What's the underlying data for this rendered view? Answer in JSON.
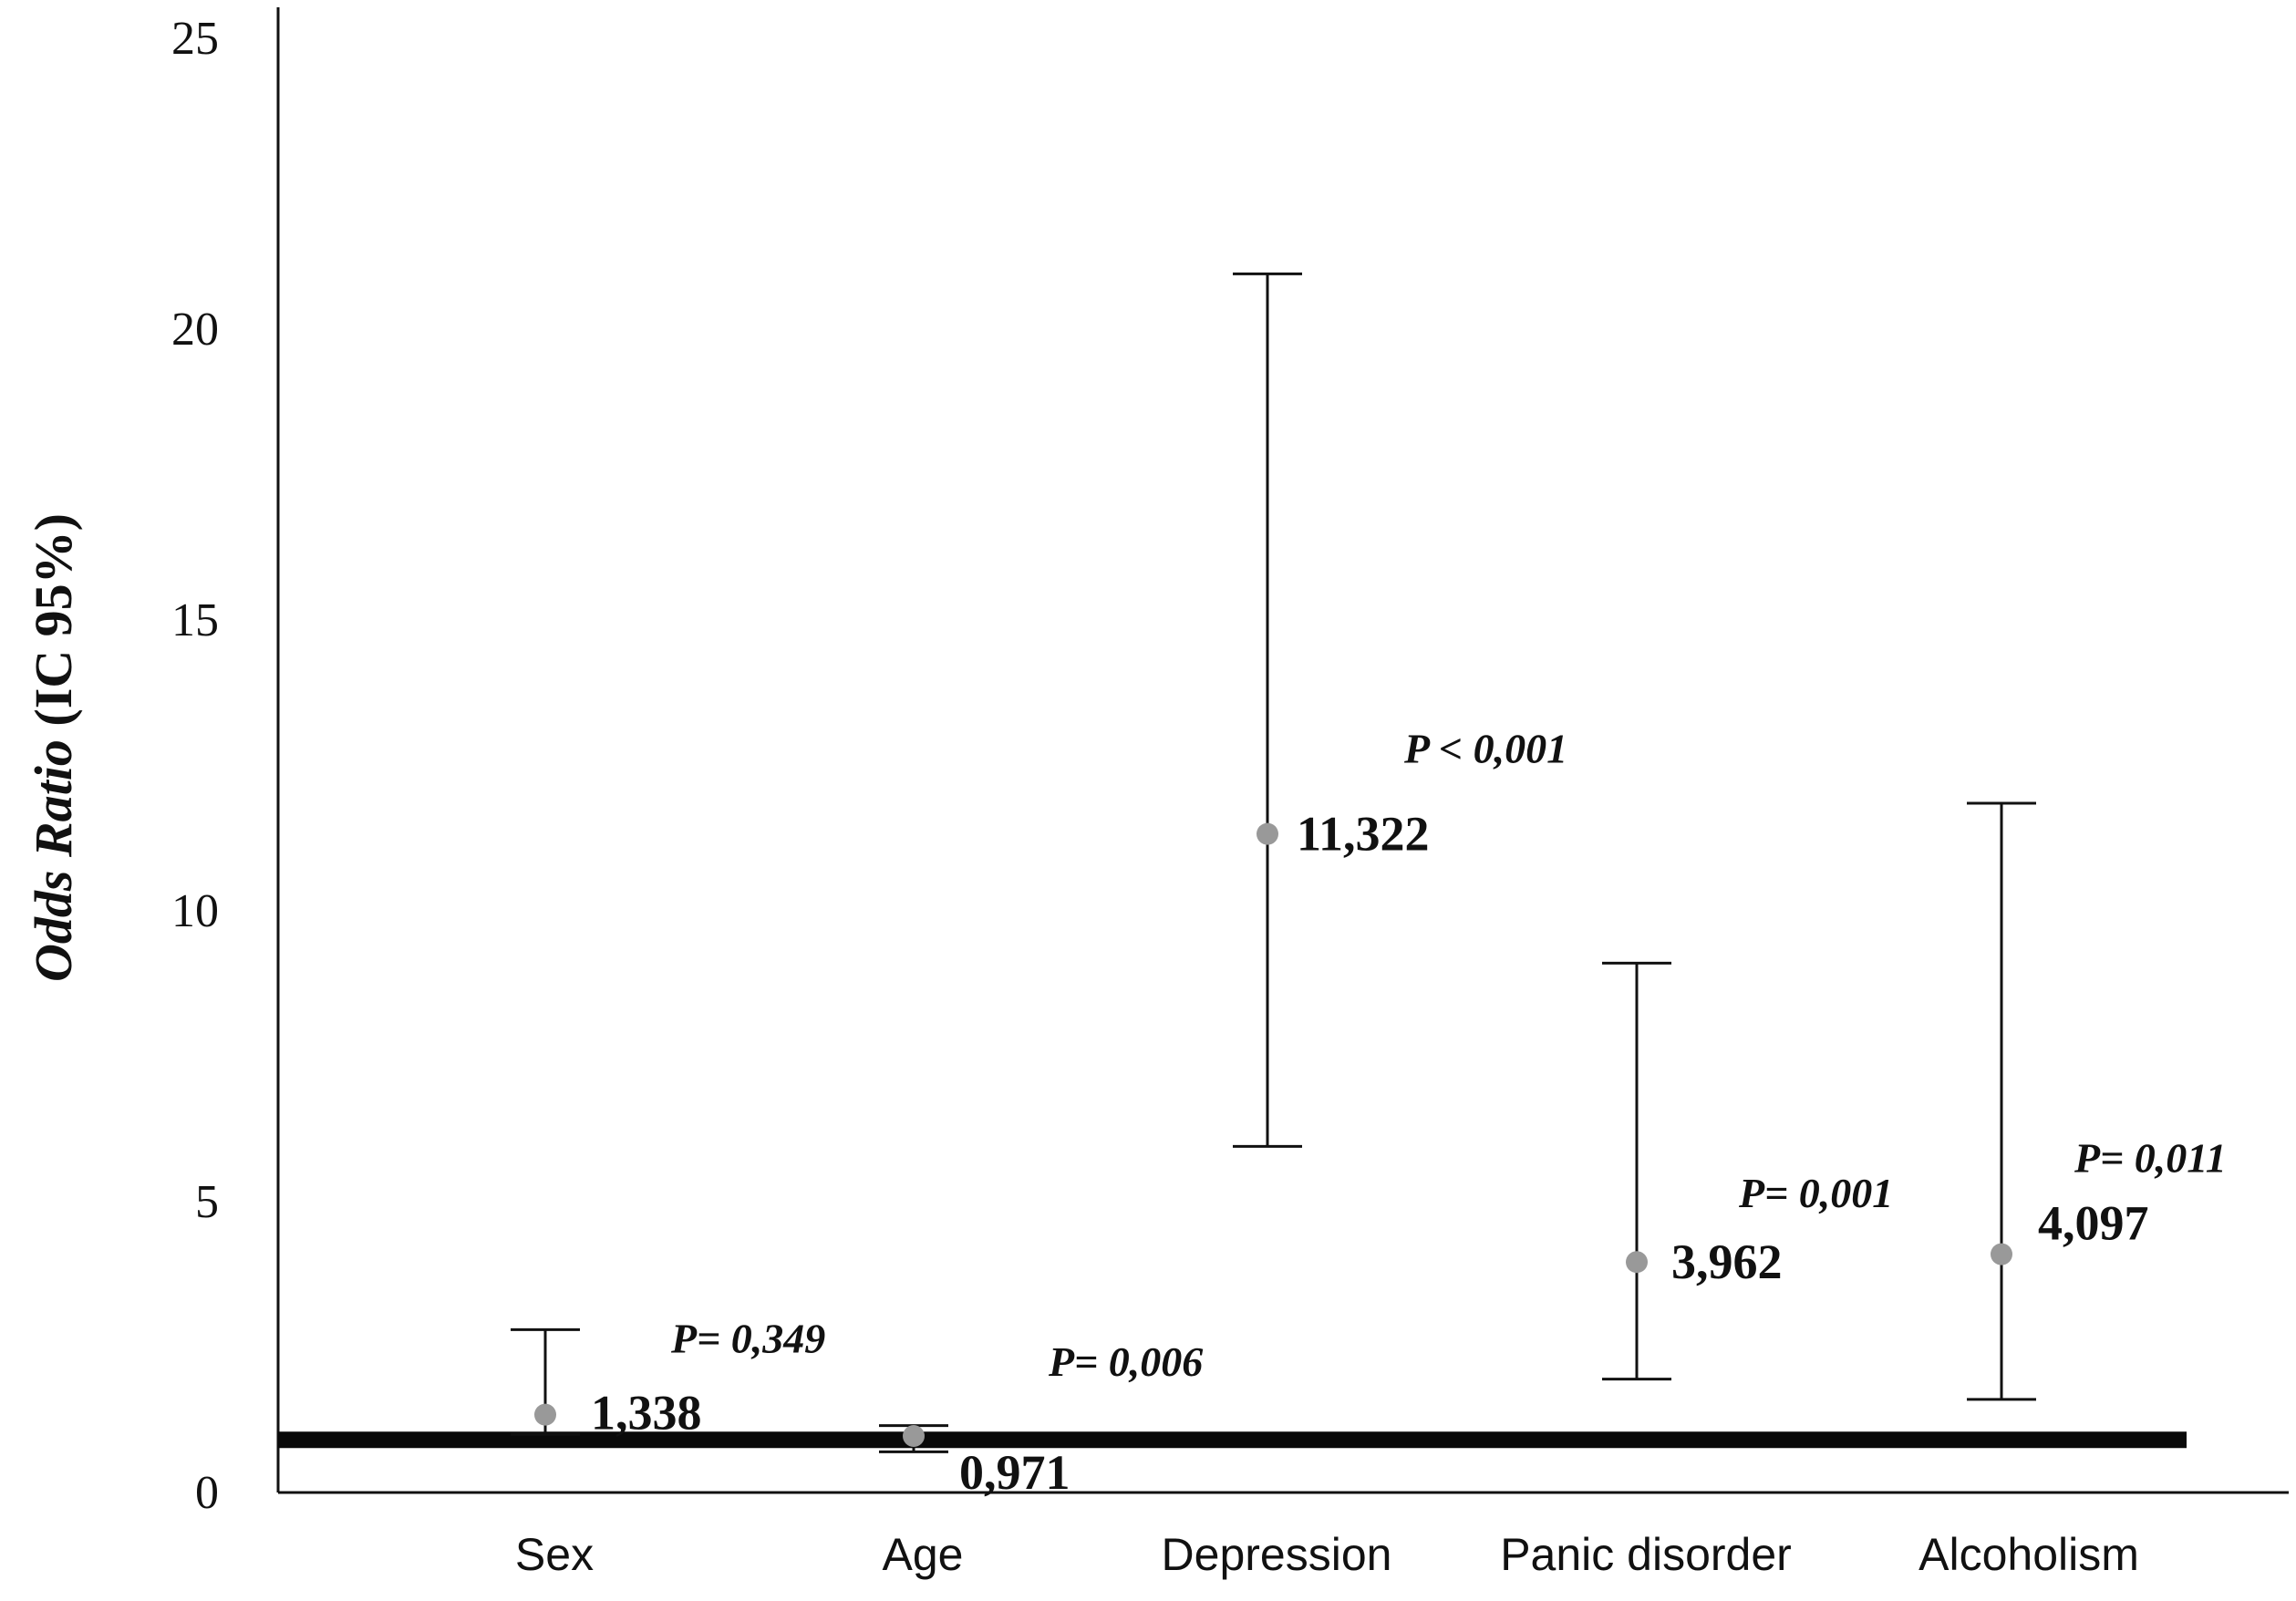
{
  "chart_data": {
    "type": "scatter",
    "ylabel_italic": "Odds Ratio",
    "ylabel_rest": " (IC 95%)",
    "ylim": [
      0,
      25
    ],
    "yticks": [
      "0",
      "5",
      "10",
      "15",
      "20",
      "25"
    ],
    "grid": false,
    "reference_line": 1,
    "categories": [
      "Sex",
      "Age",
      "Depression",
      "Panic disorder",
      "Alcoholism"
    ],
    "points": [
      {
        "category": "Sex",
        "or": 1.338,
        "label": "1,338",
        "ci_low": 1.0,
        "ci_high": 2.8,
        "p": "P= 0,349"
      },
      {
        "category": "Age",
        "or": 0.971,
        "label": "0,971",
        "ci_low": 0.7,
        "ci_high": 1.15,
        "p": "P= 0,006"
      },
      {
        "category": "Depression",
        "or": 11.322,
        "label": "11,322",
        "ci_low": 5.95,
        "ci_high": 20.95,
        "p": "P < 0,001"
      },
      {
        "category": "Panic disorder",
        "or": 3.962,
        "label": "3,962",
        "ci_low": 1.95,
        "ci_high": 9.1,
        "p": "P= 0,001"
      },
      {
        "category": "Alcoholism",
        "or": 4.097,
        "label": "4,097",
        "ci_low": 1.6,
        "ci_high": 11.85,
        "p": "P= 0,011"
      }
    ],
    "colors": {
      "point": "#999999",
      "line": "#111111",
      "reference": "#0a0a0a"
    }
  }
}
